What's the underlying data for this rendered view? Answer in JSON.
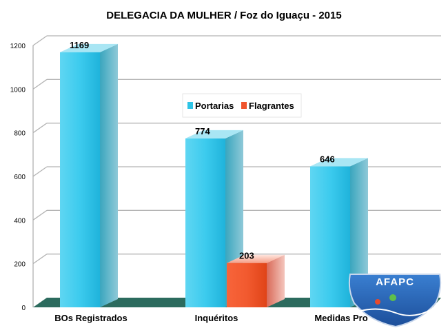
{
  "chart_data": {
    "type": "bar",
    "title": "DELEGACIA DA MULHER / Foz do Iguaçu -  2015",
    "categories": [
      "BOs Registrados",
      "Inquéritos",
      "Medidas Protetivas"
    ],
    "category_labels_visible": [
      "BOs Registrados",
      "Inquéritos",
      "Medidas Pro"
    ],
    "series": [
      {
        "name": "Portarias",
        "values": [
          1169,
          774,
          646
        ],
        "color": "#2ec4e6"
      },
      {
        "name": "Flagrantes",
        "values": [
          null,
          203,
          null
        ],
        "color": "#f0552e"
      }
    ],
    "yticks": [
      0,
      200,
      400,
      600,
      800,
      1000,
      1200
    ],
    "ylim": [
      0,
      1200
    ],
    "grid": true,
    "legend_position": "middle"
  },
  "logo": {
    "text": "AFAPC"
  }
}
